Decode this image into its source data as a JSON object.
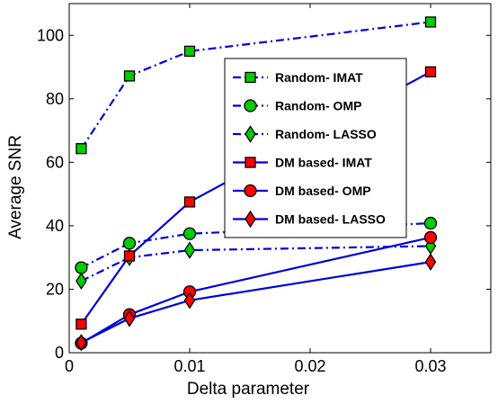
{
  "chart_data": {
    "type": "line",
    "title": "",
    "xlabel": "Delta parameter",
    "ylabel": "Average SNR",
    "xlim": [
      0,
      0.035
    ],
    "ylim": [
      0,
      110
    ],
    "x_ticks": [
      {
        "value": 0,
        "label": "0"
      },
      {
        "value": 0.01,
        "label": "0.01"
      },
      {
        "value": 0.02,
        "label": "0.02"
      },
      {
        "value": 0.03,
        "label": "0.03"
      }
    ],
    "y_ticks": [
      {
        "value": 0,
        "label": "0"
      },
      {
        "value": 20,
        "label": "20"
      },
      {
        "value": 40,
        "label": "40"
      },
      {
        "value": 60,
        "label": "60"
      },
      {
        "value": 80,
        "label": "80"
      },
      {
        "value": 100,
        "label": "100"
      }
    ],
    "grid": false,
    "legend_position": "upper-center-right",
    "x": [
      0.001,
      0.005,
      0.01,
      0.03
    ],
    "series": [
      {
        "name": "Random- IMAT",
        "values": [
          64.3,
          87.2,
          95.0,
          104.2
        ],
        "color": "#00cc00",
        "marker": "square",
        "line_style": "dashdot"
      },
      {
        "name": "Random- OMP",
        "values": [
          26.8,
          34.5,
          37.5,
          40.8
        ],
        "color": "#00cc00",
        "marker": "circle",
        "line_style": "dashdot"
      },
      {
        "name": "Random- LASSO",
        "values": [
          22.6,
          30.0,
          32.3,
          33.6
        ],
        "color": "#00cc00",
        "marker": "diamond",
        "line_style": "dashdot"
      },
      {
        "name": "DM based- IMAT",
        "values": [
          9.0,
          30.5,
          47.5,
          88.5
        ],
        "color": "#ff0000",
        "marker": "square",
        "line_style": "solid"
      },
      {
        "name": "DM based- OMP",
        "values": [
          3.0,
          12.0,
          19.2,
          36.3
        ],
        "color": "#ff0000",
        "marker": "circle",
        "line_style": "solid"
      },
      {
        "name": "DM based- LASSO",
        "values": [
          3.2,
          10.8,
          16.5,
          28.6
        ],
        "color": "#ff0000",
        "marker": "diamond",
        "line_style": "solid"
      }
    ],
    "line_color": "#0000dd"
  }
}
